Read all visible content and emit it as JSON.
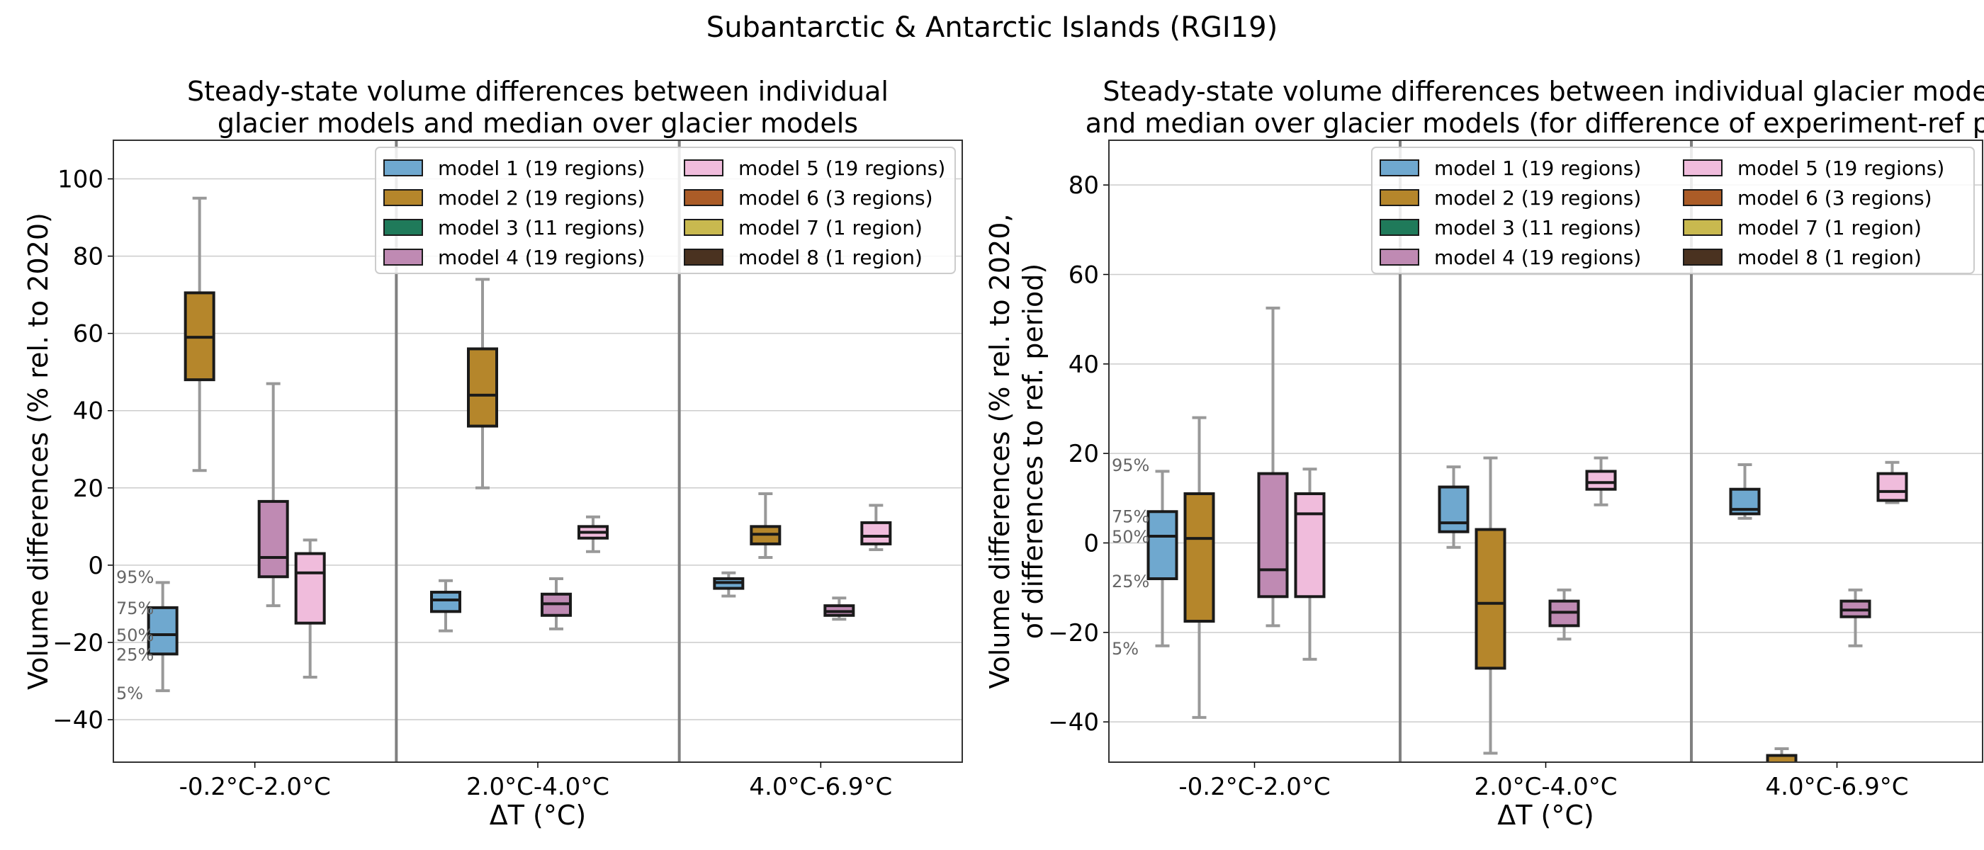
{
  "suptitle": "Subantarctic & Antarctic Islands (RGI19)",
  "colors": {
    "model 1": "#6fa8cf",
    "model 2": "#b5862b",
    "model 3": "#1f7a5a",
    "model 4": "#bf8ab3",
    "model 5": "#f0bcdc",
    "model 6": "#ab5c27",
    "model 7": "#c9b94f",
    "model 8": "#4a3220",
    "whisker": "#999999",
    "divider": "#808080",
    "grid": "#cccccc"
  },
  "legend": {
    "entries": [
      "model 1 (19 regions)",
      "model 2 (19 regions)",
      "model 3 (11 regions)",
      "model 4 (19 regions)",
      "model 5 (19 regions)",
      "model 6 (3 regions)",
      "model 7 (1 region)",
      "model 8 (1 region)"
    ],
    "placement": "top-right"
  },
  "chart_data": [
    {
      "type": "box",
      "title": "Steady-state volume differences between individual\nglacier models and median over glacier models",
      "xlabel": "ΔT (°C)",
      "ylabel": "Volume differences (% rel. to 2020)",
      "ylim": [
        -51,
        110
      ],
      "yticks": [
        -40,
        -20,
        0,
        20,
        40,
        60,
        80,
        100
      ],
      "grid": true,
      "categories": [
        "-0.2°C-2.0°C",
        "2.0°C-4.0°C",
        "4.0°C-6.9°C"
      ],
      "quantile_labels": [
        {
          "text": "95%",
          "y": -3
        },
        {
          "text": "75%",
          "y": -11
        },
        {
          "text": "50%",
          "y": -18
        },
        {
          "text": "25%",
          "y": -23
        },
        {
          "text": "5%",
          "y": -33
        }
      ],
      "boxes": [
        {
          "category": 0,
          "model": "model 1",
          "p5": -32.5,
          "q1": -23,
          "median": -18,
          "q3": -11,
          "p95": -4.5
        },
        {
          "category": 0,
          "model": "model 2",
          "p5": 24.5,
          "q1": 48,
          "median": 59,
          "q3": 70.5,
          "p95": 95
        },
        {
          "category": 0,
          "model": "model 4",
          "p5": -10.5,
          "q1": -3,
          "median": 2,
          "q3": 16.5,
          "p95": 47
        },
        {
          "category": 0,
          "model": "model 5",
          "p5": -29,
          "q1": -15,
          "median": -2,
          "q3": 3,
          "p95": 6.5
        },
        {
          "category": 1,
          "model": "model 1",
          "p5": -17,
          "q1": -12,
          "median": -9,
          "q3": -7,
          "p95": -4
        },
        {
          "category": 1,
          "model": "model 2",
          "p5": 20,
          "q1": 36,
          "median": 44,
          "q3": 56,
          "p95": 74
        },
        {
          "category": 1,
          "model": "model 4",
          "p5": -16.5,
          "q1": -13,
          "median": -10,
          "q3": -7.5,
          "p95": -3.5
        },
        {
          "category": 1,
          "model": "model 5",
          "p5": 3.5,
          "q1": 7,
          "median": 8.5,
          "q3": 10,
          "p95": 12.5
        },
        {
          "category": 2,
          "model": "model 1",
          "p5": -8,
          "q1": -6,
          "median": -4.5,
          "q3": -3.5,
          "p95": -2
        },
        {
          "category": 2,
          "model": "model 2",
          "p5": 2,
          "q1": 5.5,
          "median": 8,
          "q3": 10,
          "p95": 18.5
        },
        {
          "category": 2,
          "model": "model 4",
          "p5": -14,
          "q1": -13,
          "median": -12,
          "q3": -10.5,
          "p95": -8.5
        },
        {
          "category": 2,
          "model": "model 5",
          "p5": 4,
          "q1": 5.5,
          "median": 7.5,
          "q3": 11,
          "p95": 15.5
        }
      ]
    },
    {
      "type": "box",
      "title": "Steady-state volume differences between individual glacier mode\nand median over glacier models (for difference of experiment-ref pe",
      "xlabel": "ΔT (°C)",
      "ylabel": "Volume differences (% rel. to 2020,\nof differences to ref. period)",
      "ylim": [
        -49,
        90
      ],
      "yticks": [
        -40,
        -20,
        0,
        20,
        40,
        60,
        80
      ],
      "grid": true,
      "categories": [
        "-0.2°C-2.0°C",
        "2.0°C-4.0°C",
        "4.0°C-6.9°C"
      ],
      "quantile_labels": [
        {
          "text": "95%",
          "y": 17.5
        },
        {
          "text": "75%",
          "y": 6
        },
        {
          "text": "50%",
          "y": 1.5
        },
        {
          "text": "25%",
          "y": -8.5
        },
        {
          "text": "5%",
          "y": -23.5
        }
      ],
      "boxes": [
        {
          "category": 0,
          "model": "model 1",
          "p5": -23,
          "q1": -8,
          "median": 1.5,
          "q3": 7,
          "p95": 16
        },
        {
          "category": 0,
          "model": "model 2",
          "p5": -39,
          "q1": -17.5,
          "median": 1,
          "q3": 11,
          "p95": 28
        },
        {
          "category": 0,
          "model": "model 4",
          "p5": -18.5,
          "q1": -12,
          "median": -6,
          "q3": 15.5,
          "p95": 52.5
        },
        {
          "category": 0,
          "model": "model 5",
          "p5": -26,
          "q1": -12,
          "median": 6.5,
          "q3": 11,
          "p95": 16.5
        },
        {
          "category": 1,
          "model": "model 1",
          "p5": -1,
          "q1": 2.5,
          "median": 4.5,
          "q3": 12.5,
          "p95": 17
        },
        {
          "category": 1,
          "model": "model 2",
          "p5": -47,
          "q1": -28,
          "median": -13.5,
          "q3": 3,
          "p95": 19
        },
        {
          "category": 1,
          "model": "model 4",
          "p5": -21.5,
          "q1": -18.5,
          "median": -15.5,
          "q3": -13,
          "p95": -10.5
        },
        {
          "category": 1,
          "model": "model 5",
          "p5": 8.5,
          "q1": 12,
          "median": 13.5,
          "q3": 16,
          "p95": 19
        },
        {
          "category": 2,
          "model": "model 1",
          "p5": 5.5,
          "q1": 6.5,
          "median": 7.5,
          "q3": 12,
          "p95": 17.5
        },
        {
          "category": 2,
          "model": "model 2",
          "p5": -53,
          "q1": -51,
          "median": -50,
          "q3": -47.5,
          "p95": -46
        },
        {
          "category": 2,
          "model": "model 4",
          "p5": -23,
          "q1": -16.5,
          "median": -15,
          "q3": -13,
          "p95": -10.5
        },
        {
          "category": 2,
          "model": "model 5",
          "p5": 9,
          "q1": 9.5,
          "median": 11.5,
          "q3": 15.5,
          "p95": 18
        }
      ]
    }
  ]
}
